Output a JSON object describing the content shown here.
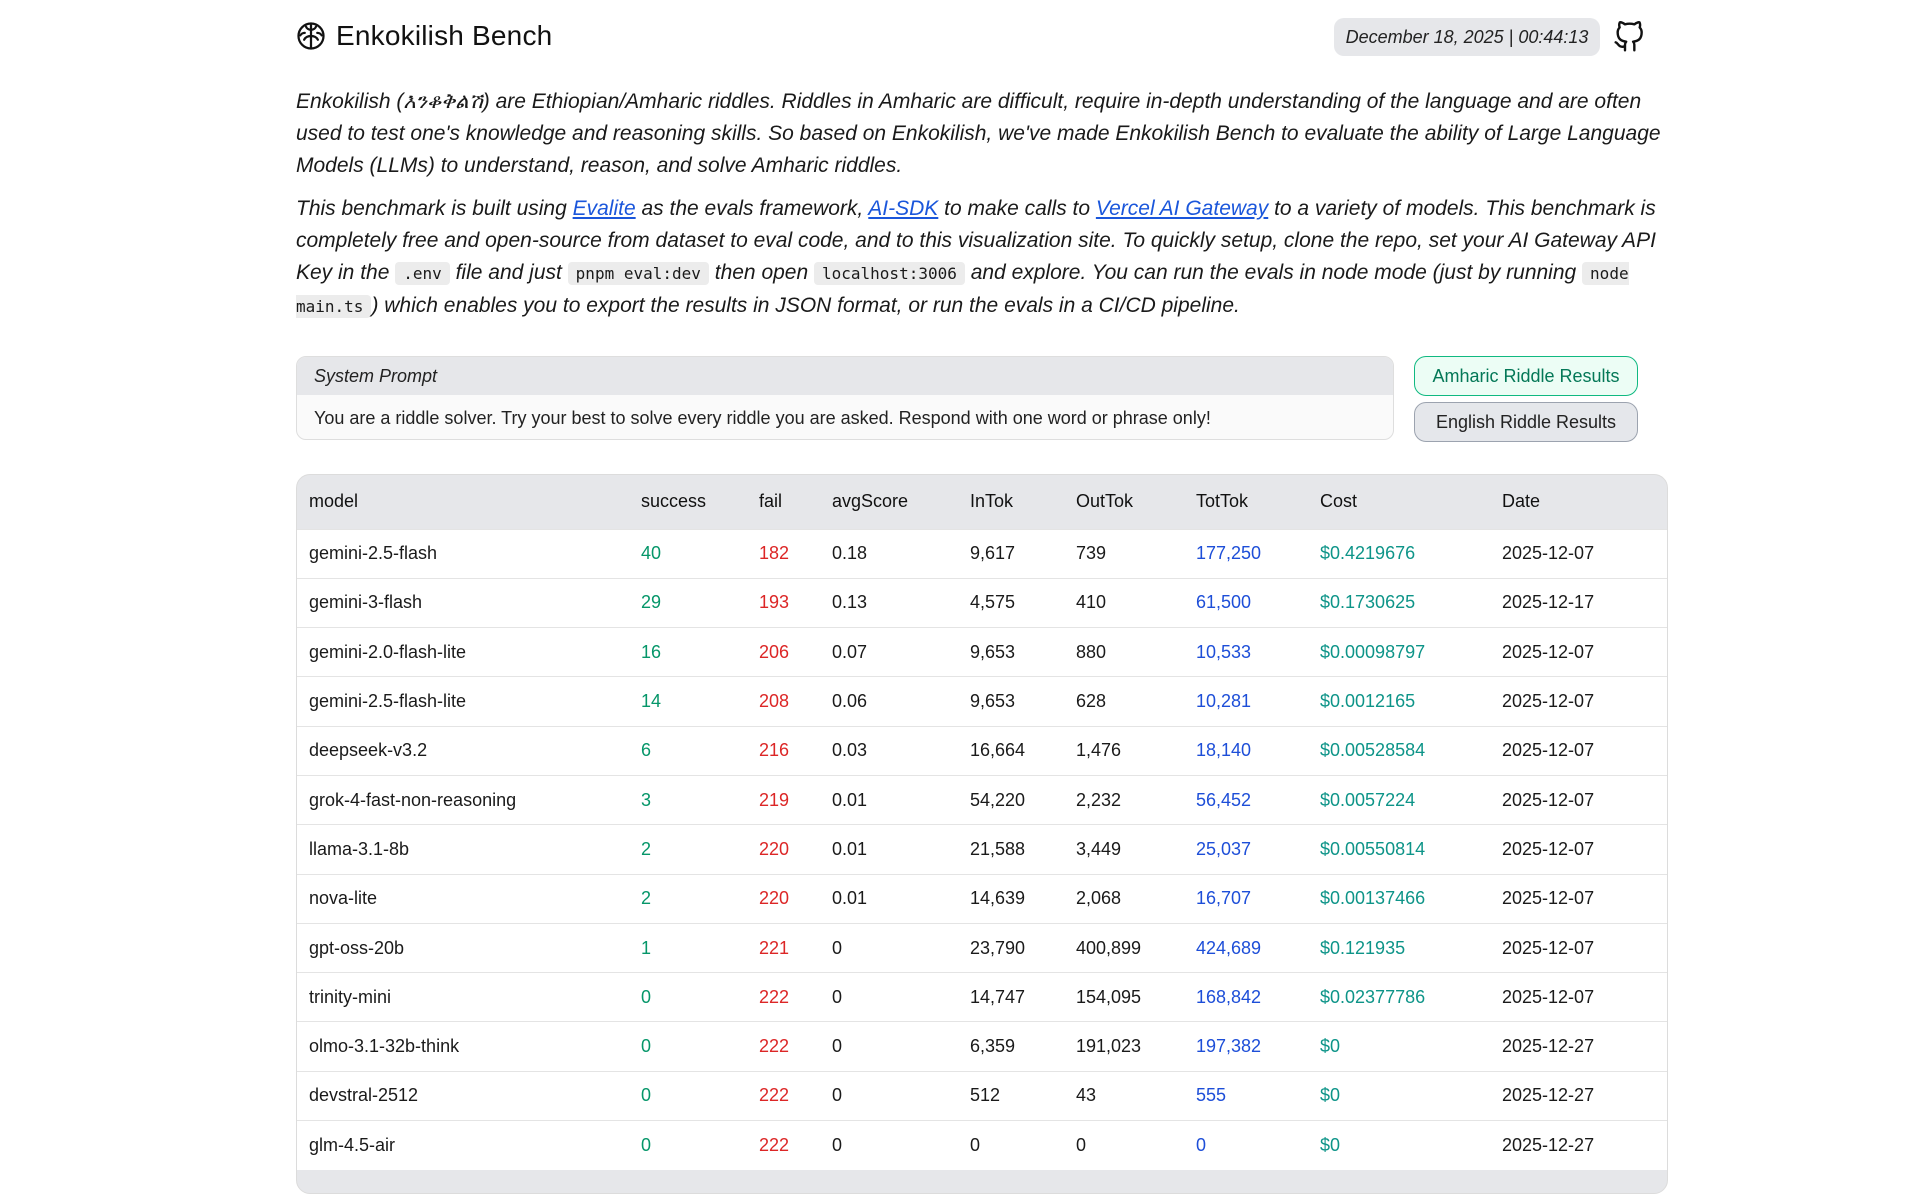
{
  "header": {
    "title": "Enkokilish Bench",
    "datetime": "December 18, 2025 | 00:44:13",
    "brand_icon": "brain-icon",
    "github_icon": "github-icon"
  },
  "description": {
    "p1": "Enkokilish (እንቆቅልሽ) are Ethiopian/Amharic riddles. Riddles in Amharic are difficult, require in-depth understanding of the language and are often used to test one's knowledge and reasoning skills. So based on Enkokilish, we've made Enkokilish Bench to evaluate the ability of Large Language Models (LLMs) to understand, reason, and solve Amharic riddles.",
    "p2_a": "This benchmark is built using ",
    "link_evalite": "Evalite",
    "p2_b": " as the evals framework, ",
    "link_aisdk": "AI-SDK",
    "p2_c": " to make calls to ",
    "link_gateway": "Vercel AI Gateway",
    "p2_d": " to a variety of models. This benchmark is completely free and open-source from dataset to eval code, and to this visualization site. To quickly setup, clone the repo, set your AI Gateway API Key in the ",
    "code_env": ".env",
    "p2_e": " file and just ",
    "code_cmd": "pnpm eval:dev",
    "p2_f": " then open ",
    "code_host": "localhost:3006",
    "p2_g": " and explore. You can run the evals in node mode (just by running ",
    "code_node": "node main.ts",
    "p2_h": ") which enables you to export the results in JSON format, or run the evals in a CI/CD pipeline."
  },
  "system_prompt": {
    "label": "System Prompt",
    "text": "You are a riddle solver. Try your best to solve every riddle you are asked. Respond with one word or phrase only!"
  },
  "buttons": {
    "amharic": "Amharic Riddle Results",
    "english": "English Riddle Results"
  },
  "table": {
    "headers": [
      "model",
      "success",
      "fail",
      "avgScore",
      "InTok",
      "OutTok",
      "TotTok",
      "Cost",
      "Date"
    ],
    "rows": [
      [
        "gemini-2.5-flash",
        "40",
        "182",
        "0.18",
        "9,617",
        "739",
        "177,250",
        "$0.4219676",
        "2025-12-07"
      ],
      [
        "gemini-3-flash",
        "29",
        "193",
        "0.13",
        "4,575",
        "410",
        "61,500",
        "$0.1730625",
        "2025-12-17"
      ],
      [
        "gemini-2.0-flash-lite",
        "16",
        "206",
        "0.07",
        "9,653",
        "880",
        "10,533",
        "$0.00098797",
        "2025-12-07"
      ],
      [
        "gemini-2.5-flash-lite",
        "14",
        "208",
        "0.06",
        "9,653",
        "628",
        "10,281",
        "$0.0012165",
        "2025-12-07"
      ],
      [
        "deepseek-v3.2",
        "6",
        "216",
        "0.03",
        "16,664",
        "1,476",
        "18,140",
        "$0.00528584",
        "2025-12-07"
      ],
      [
        "grok-4-fast-non-reasoning",
        "3",
        "219",
        "0.01",
        "54,220",
        "2,232",
        "56,452",
        "$0.0057224",
        "2025-12-07"
      ],
      [
        "llama-3.1-8b",
        "2",
        "220",
        "0.01",
        "21,588",
        "3,449",
        "25,037",
        "$0.00550814",
        "2025-12-07"
      ],
      [
        "nova-lite",
        "2",
        "220",
        "0.01",
        "14,639",
        "2,068",
        "16,707",
        "$0.00137466",
        "2025-12-07"
      ],
      [
        "gpt-oss-20b",
        "1",
        "221",
        "0",
        "23,790",
        "400,899",
        "424,689",
        "$0.121935",
        "2025-12-07"
      ],
      [
        "trinity-mini",
        "0",
        "222",
        "0",
        "14,747",
        "154,095",
        "168,842",
        "$0.02377786",
        "2025-12-07"
      ],
      [
        "olmo-3.1-32b-think",
        "0",
        "222",
        "0",
        "6,359",
        "191,023",
        "197,382",
        "$0",
        "2025-12-27"
      ],
      [
        "devstral-2512",
        "0",
        "222",
        "0",
        "512",
        "43",
        "555",
        "$0",
        "2025-12-27"
      ],
      [
        "glm-4.5-air",
        "0",
        "222",
        "0",
        "0",
        "0",
        "0",
        "$0",
        "2025-12-27"
      ]
    ]
  },
  "colors": {
    "success": "#059669",
    "fail": "#dc2626",
    "tottok": "#1d4ed8",
    "cost": "#0d9488",
    "accent_button": "#10b981"
  }
}
